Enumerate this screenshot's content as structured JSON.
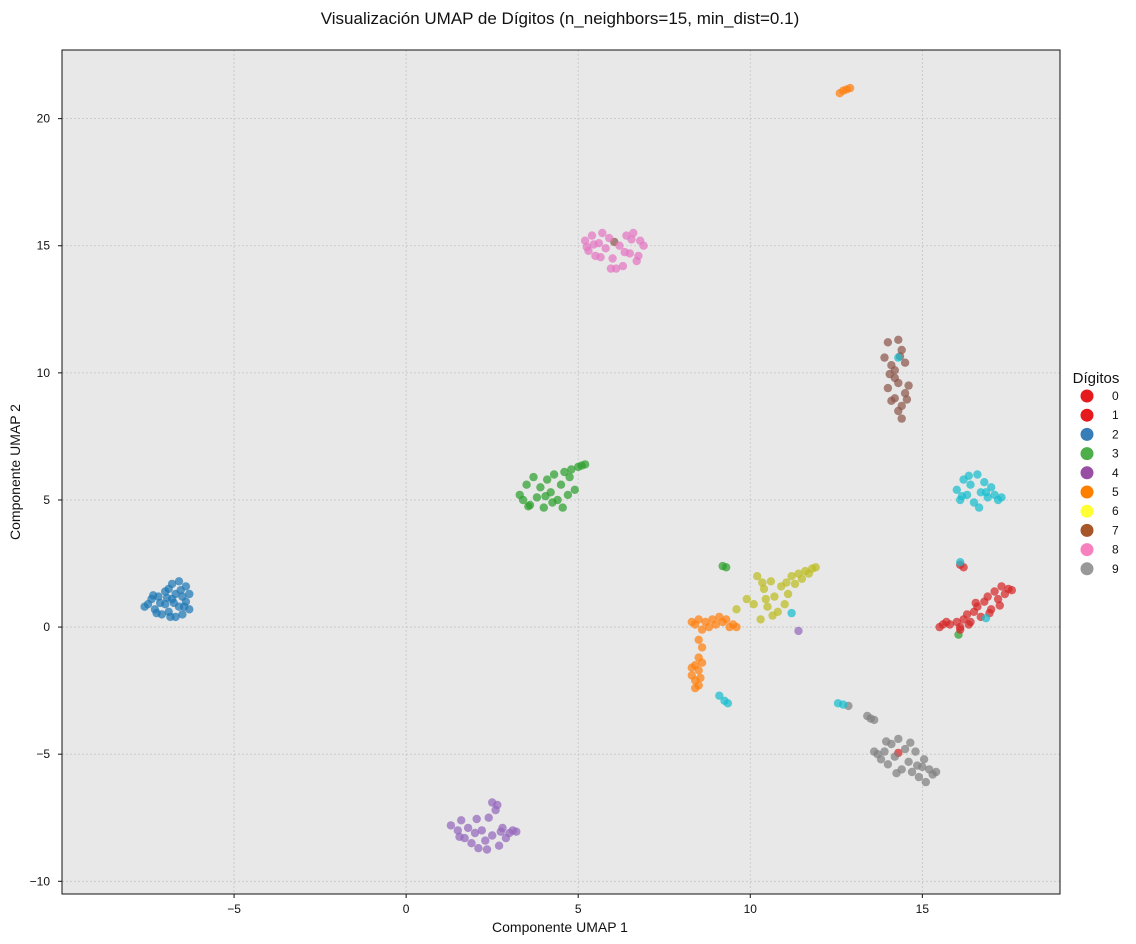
{
  "chart_data": {
    "type": "scatter",
    "title": "Visualización UMAP de Dígitos (n_neighbors=15, min_dist=0.1)",
    "xlabel": "Componente UMAP 1",
    "ylabel": "Componente UMAP 2",
    "xlim": [
      -10.0,
      19.0
    ],
    "ylim": [
      -10.5,
      22.7
    ],
    "xticks": [
      -5,
      0,
      5,
      10,
      15
    ],
    "xtick_labels": [
      "−5",
      "0",
      "5",
      "10",
      "15"
    ],
    "yticks": [
      -10,
      -5,
      0,
      5,
      10,
      15,
      20
    ],
    "ytick_labels": [
      "−10",
      "−5",
      "0",
      "5",
      "10",
      "15",
      "20"
    ],
    "grid": true,
    "background_color": "#e8e8e8",
    "legend": {
      "title": "Dígitos",
      "placement": "outside-right",
      "entries": [
        {
          "label": "0",
          "color": "#e41a1c"
        },
        {
          "label": "1",
          "color": "#e41a1c"
        },
        {
          "label": "2",
          "color": "#377eb8"
        },
        {
          "label": "3",
          "color": "#4daf4a"
        },
        {
          "label": "4",
          "color": "#984ea3"
        },
        {
          "label": "5",
          "color": "#ff7f00"
        },
        {
          "label": "6",
          "color": "#ffff33"
        },
        {
          "label": "7",
          "color": "#a65628"
        },
        {
          "label": "8",
          "color": "#f781bf"
        },
        {
          "label": "9",
          "color": "#999999"
        }
      ]
    },
    "cluster_colors": {
      "blue": "#1f77b4",
      "orange": "#ff7f0e",
      "green": "#2ca02c",
      "red": "#d62728",
      "purple": "#9467bd",
      "brown": "#8c564b",
      "pink": "#e377c2",
      "gray": "#7f7f7f",
      "olive": "#bcbd22",
      "cyan": "#17becf"
    },
    "series": [
      {
        "color_key": "blue",
        "points": [
          [
            -7.6,
            0.8
          ],
          [
            -7.5,
            0.9
          ],
          [
            -7.4,
            1.1
          ],
          [
            -7.3,
            0.7
          ],
          [
            -7.2,
            1.2
          ],
          [
            -7.1,
            0.5
          ],
          [
            -7.0,
            1.4
          ],
          [
            -7.0,
            0.9
          ],
          [
            -6.9,
            1.5
          ],
          [
            -6.9,
            0.6
          ],
          [
            -6.8,
            1.1
          ],
          [
            -6.8,
            1.7
          ],
          [
            -6.7,
            0.4
          ],
          [
            -6.7,
            1.3
          ],
          [
            -6.6,
            1.8
          ],
          [
            -6.6,
            0.8
          ],
          [
            -6.5,
            1.2
          ],
          [
            -6.5,
            0.5
          ],
          [
            -6.4,
            1.6
          ],
          [
            -6.4,
            1.0
          ],
          [
            -6.3,
            1.3
          ],
          [
            -6.3,
            0.7
          ],
          [
            -7.35,
            1.25
          ],
          [
            -7.15,
            0.95
          ],
          [
            -6.95,
            1.15
          ],
          [
            -6.75,
            0.95
          ],
          [
            -6.55,
            1.45
          ],
          [
            -6.45,
            0.8
          ],
          [
            -7.25,
            0.55
          ],
          [
            -6.85,
            0.4
          ]
        ]
      },
      {
        "color_key": "orange",
        "points": [
          [
            12.6,
            21.0
          ],
          [
            12.7,
            21.1
          ],
          [
            12.8,
            21.15
          ],
          [
            12.9,
            21.2
          ],
          [
            8.3,
            0.2
          ],
          [
            8.4,
            0.1
          ],
          [
            8.5,
            0.3
          ],
          [
            8.6,
            -0.1
          ],
          [
            8.7,
            0.2
          ],
          [
            8.8,
            0.0
          ],
          [
            8.9,
            0.3
          ],
          [
            9.0,
            0.1
          ],
          [
            9.1,
            0.4
          ],
          [
            9.2,
            0.2
          ],
          [
            9.3,
            0.3
          ],
          [
            9.4,
            0.0
          ],
          [
            9.5,
            0.1
          ],
          [
            9.6,
            0.0
          ],
          [
            8.5,
            -0.5
          ],
          [
            8.6,
            -0.8
          ],
          [
            8.5,
            -1.2
          ],
          [
            8.4,
            -1.5
          ],
          [
            8.5,
            -1.7
          ],
          [
            8.3,
            -1.9
          ],
          [
            8.4,
            -2.1
          ],
          [
            8.5,
            -2.3
          ],
          [
            8.4,
            -2.4
          ],
          [
            8.6,
            -1.4
          ],
          [
            8.3,
            -1.6
          ],
          [
            8.55,
            -2.0
          ]
        ]
      },
      {
        "color_key": "green",
        "points": [
          [
            3.3,
            5.2
          ],
          [
            3.5,
            5.6
          ],
          [
            3.6,
            4.8
          ],
          [
            3.7,
            5.9
          ],
          [
            3.8,
            5.1
          ],
          [
            3.9,
            5.5
          ],
          [
            4.0,
            4.7
          ],
          [
            4.1,
            5.8
          ],
          [
            4.2,
            5.3
          ],
          [
            4.3,
            6.0
          ],
          [
            4.4,
            5.0
          ],
          [
            4.5,
            5.6
          ],
          [
            4.6,
            6.1
          ],
          [
            4.7,
            5.2
          ],
          [
            4.8,
            6.2
          ],
          [
            4.9,
            5.4
          ],
          [
            5.0,
            6.3
          ],
          [
            5.1,
            6.35
          ],
          [
            5.2,
            6.4
          ],
          [
            3.4,
            5.0
          ],
          [
            3.55,
            4.75
          ],
          [
            4.05,
            5.15
          ],
          [
            4.25,
            4.9
          ],
          [
            4.55,
            4.7
          ],
          [
            4.75,
            5.9
          ],
          [
            9.2,
            2.4
          ],
          [
            9.3,
            2.35
          ],
          [
            16.05,
            -0.3
          ]
        ]
      },
      {
        "color_key": "red",
        "points": [
          [
            15.5,
            0.0
          ],
          [
            15.6,
            0.1
          ],
          [
            15.7,
            0.2
          ],
          [
            15.8,
            0.1
          ],
          [
            16.0,
            0.2
          ],
          [
            16.1,
            0.0
          ],
          [
            16.2,
            0.3
          ],
          [
            16.3,
            0.5
          ],
          [
            16.4,
            0.2
          ],
          [
            16.5,
            0.6
          ],
          [
            16.6,
            0.8
          ],
          [
            16.7,
            0.4
          ],
          [
            16.8,
            1.0
          ],
          [
            16.9,
            1.2
          ],
          [
            17.0,
            0.7
          ],
          [
            17.1,
            1.4
          ],
          [
            17.2,
            1.1
          ],
          [
            17.3,
            1.6
          ],
          [
            17.4,
            1.3
          ],
          [
            17.5,
            1.5
          ],
          [
            17.6,
            1.45
          ],
          [
            16.35,
            0.1
          ],
          [
            16.55,
            0.95
          ],
          [
            16.95,
            0.55
          ],
          [
            17.25,
            0.85
          ],
          [
            16.1,
            2.45
          ],
          [
            16.2,
            2.35
          ],
          [
            16.1,
            -0.1
          ],
          [
            14.3,
            -4.95
          ]
        ]
      },
      {
        "color_key": "purple",
        "points": [
          [
            1.3,
            -7.8
          ],
          [
            1.5,
            -8.0
          ],
          [
            1.6,
            -7.6
          ],
          [
            1.7,
            -8.3
          ],
          [
            1.8,
            -7.9
          ],
          [
            1.9,
            -8.5
          ],
          [
            2.0,
            -8.1
          ],
          [
            2.1,
            -8.7
          ],
          [
            2.2,
            -8.0
          ],
          [
            2.3,
            -8.4
          ],
          [
            2.4,
            -7.5
          ],
          [
            2.5,
            -8.2
          ],
          [
            2.6,
            -7.2
          ],
          [
            2.7,
            -8.6
          ],
          [
            2.8,
            -7.9
          ],
          [
            2.9,
            -8.3
          ],
          [
            3.0,
            -8.1
          ],
          [
            3.1,
            -8.0
          ],
          [
            3.2,
            -8.05
          ],
          [
            2.5,
            -6.9
          ],
          [
            2.65,
            -7.0
          ],
          [
            1.55,
            -8.25
          ],
          [
            2.05,
            -7.55
          ],
          [
            2.35,
            -8.75
          ],
          [
            2.75,
            -8.05
          ],
          [
            11.4,
            -0.15
          ]
        ]
      },
      {
        "color_key": "brown",
        "points": [
          [
            13.9,
            10.6
          ],
          [
            14.0,
            11.2
          ],
          [
            14.1,
            10.3
          ],
          [
            14.2,
            9.8
          ],
          [
            14.3,
            11.3
          ],
          [
            14.4,
            10.9
          ],
          [
            14.0,
            9.4
          ],
          [
            14.2,
            9.0
          ],
          [
            14.3,
            9.6
          ],
          [
            14.4,
            8.7
          ],
          [
            14.5,
            9.2
          ],
          [
            14.6,
            9.5
          ],
          [
            14.1,
            8.9
          ],
          [
            14.3,
            8.5
          ],
          [
            14.4,
            8.2
          ],
          [
            14.5,
            10.4
          ],
          [
            14.2,
            10.1
          ],
          [
            14.55,
            8.95
          ],
          [
            14.05,
            9.95
          ],
          [
            14.35,
            10.65
          ],
          [
            6.05,
            15.15
          ]
        ]
      },
      {
        "color_key": "pink",
        "points": [
          [
            5.2,
            15.2
          ],
          [
            5.3,
            14.8
          ],
          [
            5.4,
            15.4
          ],
          [
            5.5,
            14.6
          ],
          [
            5.6,
            15.1
          ],
          [
            5.7,
            15.5
          ],
          [
            5.8,
            14.9
          ],
          [
            5.9,
            15.3
          ],
          [
            6.0,
            14.5
          ],
          [
            6.1,
            14.1
          ],
          [
            6.2,
            15.0
          ],
          [
            6.3,
            14.2
          ],
          [
            6.4,
            15.4
          ],
          [
            6.5,
            14.7
          ],
          [
            6.6,
            15.5
          ],
          [
            6.7,
            14.4
          ],
          [
            6.8,
            15.2
          ],
          [
            6.9,
            15.0
          ],
          [
            5.45,
            15.05
          ],
          [
            5.95,
            14.1
          ],
          [
            6.35,
            14.75
          ],
          [
            6.55,
            15.25
          ],
          [
            6.75,
            14.6
          ],
          [
            5.25,
            14.95
          ],
          [
            5.65,
            14.55
          ]
        ]
      },
      {
        "color_key": "gray",
        "points": [
          [
            13.4,
            -3.5
          ],
          [
            13.5,
            -3.6
          ],
          [
            13.6,
            -3.65
          ],
          [
            12.85,
            -3.1
          ],
          [
            13.6,
            -4.9
          ],
          [
            13.7,
            -5.0
          ],
          [
            13.8,
            -5.2
          ],
          [
            13.9,
            -4.9
          ],
          [
            14.0,
            -5.4
          ],
          [
            14.1,
            -4.6
          ],
          [
            14.2,
            -5.1
          ],
          [
            14.3,
            -4.4
          ],
          [
            14.4,
            -5.6
          ],
          [
            14.5,
            -4.8
          ],
          [
            14.6,
            -5.3
          ],
          [
            14.7,
            -5.7
          ],
          [
            14.8,
            -4.9
          ],
          [
            14.9,
            -5.9
          ],
          [
            15.0,
            -5.5
          ],
          [
            15.1,
            -6.1
          ],
          [
            15.2,
            -5.6
          ],
          [
            15.3,
            -5.8
          ],
          [
            15.4,
            -5.7
          ],
          [
            14.25,
            -5.75
          ],
          [
            14.65,
            -4.55
          ],
          [
            14.85,
            -5.45
          ],
          [
            15.05,
            -5.2
          ],
          [
            13.95,
            -4.5
          ]
        ]
      },
      {
        "color_key": "olive",
        "points": [
          [
            9.6,
            0.7
          ],
          [
            9.9,
            1.1
          ],
          [
            10.1,
            0.9
          ],
          [
            10.2,
            2.0
          ],
          [
            10.3,
            0.3
          ],
          [
            10.4,
            1.5
          ],
          [
            10.5,
            0.8
          ],
          [
            10.6,
            1.8
          ],
          [
            10.7,
            1.2
          ],
          [
            10.8,
            0.6
          ],
          [
            10.9,
            1.6
          ],
          [
            11.0,
            0.9
          ],
          [
            11.1,
            1.3
          ],
          [
            11.2,
            2.0
          ],
          [
            11.3,
            1.7
          ],
          [
            11.4,
            2.1
          ],
          [
            11.5,
            1.9
          ],
          [
            11.6,
            2.2
          ],
          [
            11.7,
            2.1
          ],
          [
            11.8,
            2.3
          ],
          [
            11.9,
            2.35
          ],
          [
            10.35,
            1.75
          ],
          [
            10.65,
            0.45
          ],
          [
            11.05,
            1.75
          ],
          [
            10.45,
            1.1
          ]
        ]
      },
      {
        "color_key": "cyan",
        "points": [
          [
            16.0,
            5.4
          ],
          [
            16.1,
            5.0
          ],
          [
            16.2,
            5.8
          ],
          [
            16.3,
            5.2
          ],
          [
            16.4,
            5.6
          ],
          [
            16.5,
            4.9
          ],
          [
            16.6,
            6.0
          ],
          [
            16.7,
            5.3
          ],
          [
            16.8,
            5.7
          ],
          [
            16.9,
            5.1
          ],
          [
            17.0,
            5.5
          ],
          [
            17.1,
            5.2
          ],
          [
            17.2,
            5.0
          ],
          [
            17.3,
            5.1
          ],
          [
            16.65,
            4.7
          ],
          [
            16.35,
            5.95
          ],
          [
            16.85,
            5.3
          ],
          [
            16.15,
            5.15
          ],
          [
            9.1,
            -2.7
          ],
          [
            9.25,
            -2.9
          ],
          [
            9.35,
            -3.0
          ],
          [
            12.55,
            -3.0
          ],
          [
            12.7,
            -3.05
          ],
          [
            14.3,
            10.6
          ],
          [
            16.1,
            2.55
          ],
          [
            16.85,
            0.35
          ],
          [
            11.2,
            0.55
          ]
        ]
      }
    ]
  }
}
